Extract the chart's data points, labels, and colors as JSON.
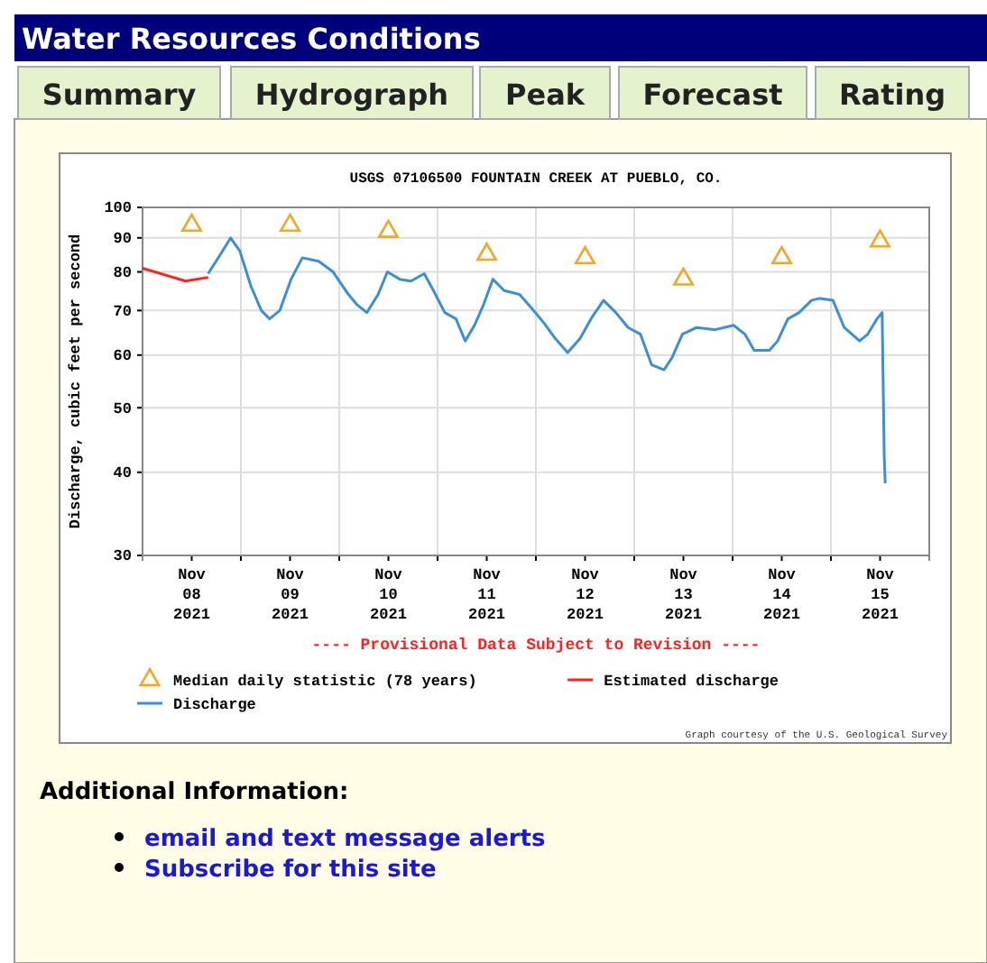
{
  "chart_data": [
    {
      "type": "other",
      "title": "Water Resources Conditions",
      "annotations": [
        "Summary",
        "Hydrograph",
        "Peak",
        "Forecast",
        "Rating"
      ]
    },
    {
      "type": "line",
      "title": "USGS 07106500 FOUNTAIN CREEK AT PUEBLO, CO.",
      "ylabel": "Discharge, cubic feet per second",
      "log": "y",
      "grid": true,
      "legend": "bottom",
      "xlim": [
        "2021-11-08T00:00",
        "2021-11-16T00:00"
      ],
      "xticks": [
        {
          "value": "2021-11-08T12:00",
          "label": "Nov\n08\n2021"
        },
        {
          "value": "2021-11-09T00:00",
          "label": null
        },
        {
          "value": "2021-11-09T12:00",
          "label": "Nov\n09\n2021"
        },
        {
          "value": "2021-11-10T00:00",
          "label": null
        },
        {
          "value": "2021-11-10T12:00",
          "label": "Nov\n10\n2021"
        },
        {
          "value": "2021-11-11T00:00",
          "label": null
        },
        {
          "value": "2021-11-11T12:00",
          "label": "Nov\n11\n2021"
        },
        {
          "value": "2021-11-12T00:00",
          "label": null
        },
        {
          "value": "2021-11-12T12:00",
          "label": "Nov\n12\n2021"
        },
        {
          "value": "2021-11-13T00:00",
          "label": null
        },
        {
          "value": "2021-11-13T12:00",
          "label": "Nov\n13\n2021"
        },
        {
          "value": "2021-11-14T00:00",
          "label": null
        },
        {
          "value": "2021-11-14T12:00",
          "label": "Nov\n14\n2021"
        },
        {
          "value": "2021-11-15T00:00",
          "label": null
        },
        {
          "value": "2021-11-15T12:00",
          "label": "Nov\n15\n2021"
        }
      ],
      "ylim": [
        30,
        100
      ],
      "yticks": [
        30,
        40,
        50,
        60,
        70,
        80,
        90,
        100
      ],
      "series": [
        {
          "name": "Median daily statistic (78 years)",
          "type": "scatter",
          "marker": "triangle",
          "color": "#f5a623",
          "x": [
            "2021-11-08T12:00",
            "2021-11-09T12:00",
            "2021-11-10T12:00",
            "2021-11-11T12:00",
            "2021-11-12T12:00",
            "2021-11-13T12:00",
            "2021-11-14T12:00",
            "2021-11-15T12:00"
          ],
          "values": [
            94,
            94,
            92,
            85,
            84,
            78,
            84,
            89
          ]
        },
        {
          "name": "Estimated discharge",
          "type": "line",
          "color": "#ff2020",
          "x": [
            "2021-11-08T00:00",
            "2021-11-08T06:00",
            "2021-11-08T10:30",
            "2021-11-08T16:00"
          ],
          "values": [
            81,
            79,
            77.5,
            78.5
          ]
        },
        {
          "name": "Discharge",
          "type": "line",
          "color": "#3a8fd6",
          "x": [
            "2021-11-08T16:00",
            "2021-11-08T18:45",
            "2021-11-08T21:30",
            "2021-11-08T23:45",
            "2021-11-09T02:30",
            "2021-11-09T05:00",
            "2021-11-09T07:00",
            "2021-11-09T09:30",
            "2021-11-09T12:15",
            "2021-11-09T15:00",
            "2021-11-09T19:00",
            "2021-11-09T22:30",
            "2021-11-10T02:15",
            "2021-11-10T04:15",
            "2021-11-10T06:45",
            "2021-11-10T09:30",
            "2021-11-10T11:45",
            "2021-11-10T14:45",
            "2021-11-10T17:30",
            "2021-11-10T20:45",
            "2021-11-10T23:00",
            "2021-11-11T01:45",
            "2021-11-11T04:30",
            "2021-11-11T06:45",
            "2021-11-11T09:00",
            "2021-11-11T11:15",
            "2021-11-11T13:30",
            "2021-11-11T16:15",
            "2021-11-11T20:00",
            "2021-11-11T23:00",
            "2021-11-12T02:00",
            "2021-11-12T04:45",
            "2021-11-12T07:45",
            "2021-11-12T10:45",
            "2021-11-12T13:45",
            "2021-11-12T16:30",
            "2021-11-12T19:30",
            "2021-11-12T22:30",
            "2021-11-13T01:30",
            "2021-11-13T04:15",
            "2021-11-13T07:15",
            "2021-11-13T09:15",
            "2021-11-13T11:45",
            "2021-11-13T15:15",
            "2021-11-13T19:45",
            "2021-11-14T00:15",
            "2021-11-14T03:00",
            "2021-11-14T05:15",
            "2021-11-14T09:00",
            "2021-11-14T11:00",
            "2021-11-14T13:30",
            "2021-11-14T16:15",
            "2021-11-14T19:15",
            "2021-11-14T21:15",
            "2021-11-15T00:30",
            "2021-11-15T03:15",
            "2021-11-15T07:00",
            "2021-11-15T09:00",
            "2021-11-15T11:15",
            "2021-11-15T12:30",
            "2021-11-15T13:00",
            "2021-11-15T13:15"
          ],
          "values": [
            79.5,
            84.5,
            90,
            86,
            76,
            70,
            68,
            70,
            78,
            84,
            83,
            80,
            74,
            71.5,
            69.5,
            74,
            80,
            78,
            77.5,
            79.5,
            75,
            69.5,
            68,
            63,
            66.5,
            71.5,
            78,
            75,
            74,
            70.5,
            67,
            63.5,
            60.5,
            63.5,
            68.5,
            72.5,
            69.5,
            66,
            64.5,
            58,
            57,
            59.5,
            64.5,
            66,
            65.5,
            66.5,
            64.5,
            61,
            61,
            63,
            68,
            69.5,
            72.5,
            73,
            72.5,
            66,
            63,
            64.5,
            68,
            69.5,
            42.5,
            38.5
          ]
        }
      ],
      "annotations": [
        "---- Provisional Data Subject to Revision ----",
        "Graph courtesy of the U.S. Geological Survey"
      ]
    },
    {
      "type": "other",
      "title": "Additional Information:",
      "annotations": [
        "email and text message alerts",
        "Subscribe for this site"
      ]
    }
  ]
}
